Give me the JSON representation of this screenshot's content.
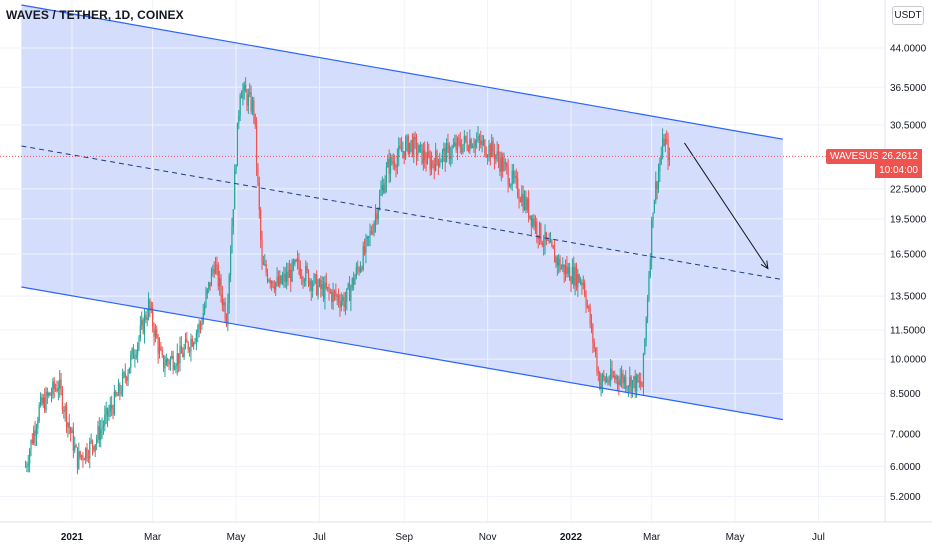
{
  "header": {
    "title": "WAVES / TETHER, 1D, COINEX",
    "unit_badge": "USDT"
  },
  "price_tags": {
    "symbol": "WAVESUSDT",
    "last_price": "26.2612",
    "countdown": "10:04:00"
  },
  "colors": {
    "up": "#26a69a",
    "down": "#ef5350",
    "channel_fill": "#d2dcfc",
    "channel_line": "#2962ff",
    "price_line": "#ef5350"
  },
  "chart_data": {
    "type": "candlestick",
    "symbol": "WAVES/USDT",
    "timeframe": "1D",
    "exchange": "COINEX",
    "y_scale": "log",
    "ylim": [
      4.9,
      54.0
    ],
    "y_ticks": [
      {
        "value": 44.0,
        "label": "44.0000"
      },
      {
        "value": 36.5,
        "label": "36.5000"
      },
      {
        "value": 30.5,
        "label": "30.5000"
      },
      {
        "value": 22.5,
        "label": "22.5000"
      },
      {
        "value": 19.5,
        "label": "19.5000"
      },
      {
        "value": 16.5,
        "label": "16.5000"
      },
      {
        "value": 13.5,
        "label": "13.5000"
      },
      {
        "value": 11.5,
        "label": "11.5000"
      },
      {
        "value": 10.0,
        "label": "10.0000"
      },
      {
        "value": 8.5,
        "label": "8.5000"
      },
      {
        "value": 7.0,
        "label": "7.0000"
      },
      {
        "value": 6.0,
        "label": "6.0000"
      },
      {
        "value": 5.2,
        "label": "5.2000"
      }
    ],
    "x_ticks": [
      {
        "date": "2021-01-01",
        "label": "2021"
      },
      {
        "date": "2021-03-01",
        "label": "Mar"
      },
      {
        "date": "2021-05-01",
        "label": "May"
      },
      {
        "date": "2021-07-01",
        "label": "Jul"
      },
      {
        "date": "2021-09-01",
        "label": "Sep"
      },
      {
        "date": "2021-11-01",
        "label": "Nov"
      },
      {
        "date": "2022-01-01",
        "label": "2022"
      },
      {
        "date": "2022-03-01",
        "label": "Mar"
      },
      {
        "date": "2022-05-01",
        "label": "May"
      },
      {
        "date": "2022-07-01",
        "label": "Jul"
      }
    ],
    "xlim": [
      "2020-11-25",
      "2022-08-05"
    ],
    "last_price": 26.2612,
    "price_series": [
      {
        "date": "2020-11-28",
        "close": 6.0
      },
      {
        "date": "2020-12-08",
        "close": 7.9
      },
      {
        "date": "2020-12-22",
        "close": 8.9
      },
      {
        "date": "2021-01-05",
        "close": 6.2
      },
      {
        "date": "2021-01-18",
        "close": 6.8
      },
      {
        "date": "2021-02-05",
        "close": 8.6
      },
      {
        "date": "2021-02-20",
        "close": 11.3
      },
      {
        "date": "2021-02-26",
        "close": 12.9
      },
      {
        "date": "2021-03-08",
        "close": 9.8
      },
      {
        "date": "2021-03-22",
        "close": 10.2
      },
      {
        "date": "2021-04-05",
        "close": 11.8
      },
      {
        "date": "2021-04-15",
        "close": 15.8
      },
      {
        "date": "2021-04-24",
        "close": 12.3
      },
      {
        "date": "2021-05-04",
        "close": 36.5
      },
      {
        "date": "2021-05-14",
        "close": 33.0
      },
      {
        "date": "2021-05-20",
        "close": 15.5
      },
      {
        "date": "2021-06-01",
        "close": 14.2
      },
      {
        "date": "2021-06-15",
        "close": 15.6
      },
      {
        "date": "2021-07-01",
        "close": 14.0
      },
      {
        "date": "2021-07-20",
        "close": 13.2
      },
      {
        "date": "2021-08-05",
        "close": 17.2
      },
      {
        "date": "2021-08-20",
        "close": 25.0
      },
      {
        "date": "2021-09-05",
        "close": 28.0
      },
      {
        "date": "2021-09-20",
        "close": 25.5
      },
      {
        "date": "2021-10-05",
        "close": 27.0
      },
      {
        "date": "2021-10-20",
        "close": 28.5
      },
      {
        "date": "2021-11-05",
        "close": 27.0
      },
      {
        "date": "2021-11-25",
        "close": 22.0
      },
      {
        "date": "2021-12-10",
        "close": 18.0
      },
      {
        "date": "2021-12-25",
        "close": 15.5
      },
      {
        "date": "2022-01-10",
        "close": 14.5
      },
      {
        "date": "2022-01-22",
        "close": 9.0
      },
      {
        "date": "2022-02-05",
        "close": 9.2
      },
      {
        "date": "2022-02-22",
        "close": 8.8
      },
      {
        "date": "2022-03-02",
        "close": 21.0
      },
      {
        "date": "2022-03-10",
        "close": 28.5
      },
      {
        "date": "2022-03-14",
        "close": 26.26
      }
    ],
    "drawings": {
      "channel_upper": [
        {
          "date": "2020-11-25",
          "price": 54.0
        },
        {
          "date": "2022-06-05",
          "price": 28.5
        }
      ],
      "channel_lower": [
        {
          "date": "2020-11-25",
          "price": 14.1
        },
        {
          "date": "2022-06-05",
          "price": 7.5
        }
      ],
      "channel_mid": [
        {
          "date": "2020-11-25",
          "price": 27.6
        },
        {
          "date": "2022-06-05",
          "price": 14.6
        }
      ],
      "arrow": [
        {
          "date": "2022-03-25",
          "price": 28.0
        },
        {
          "date": "2022-05-25",
          "price": 15.4
        }
      ]
    }
  }
}
